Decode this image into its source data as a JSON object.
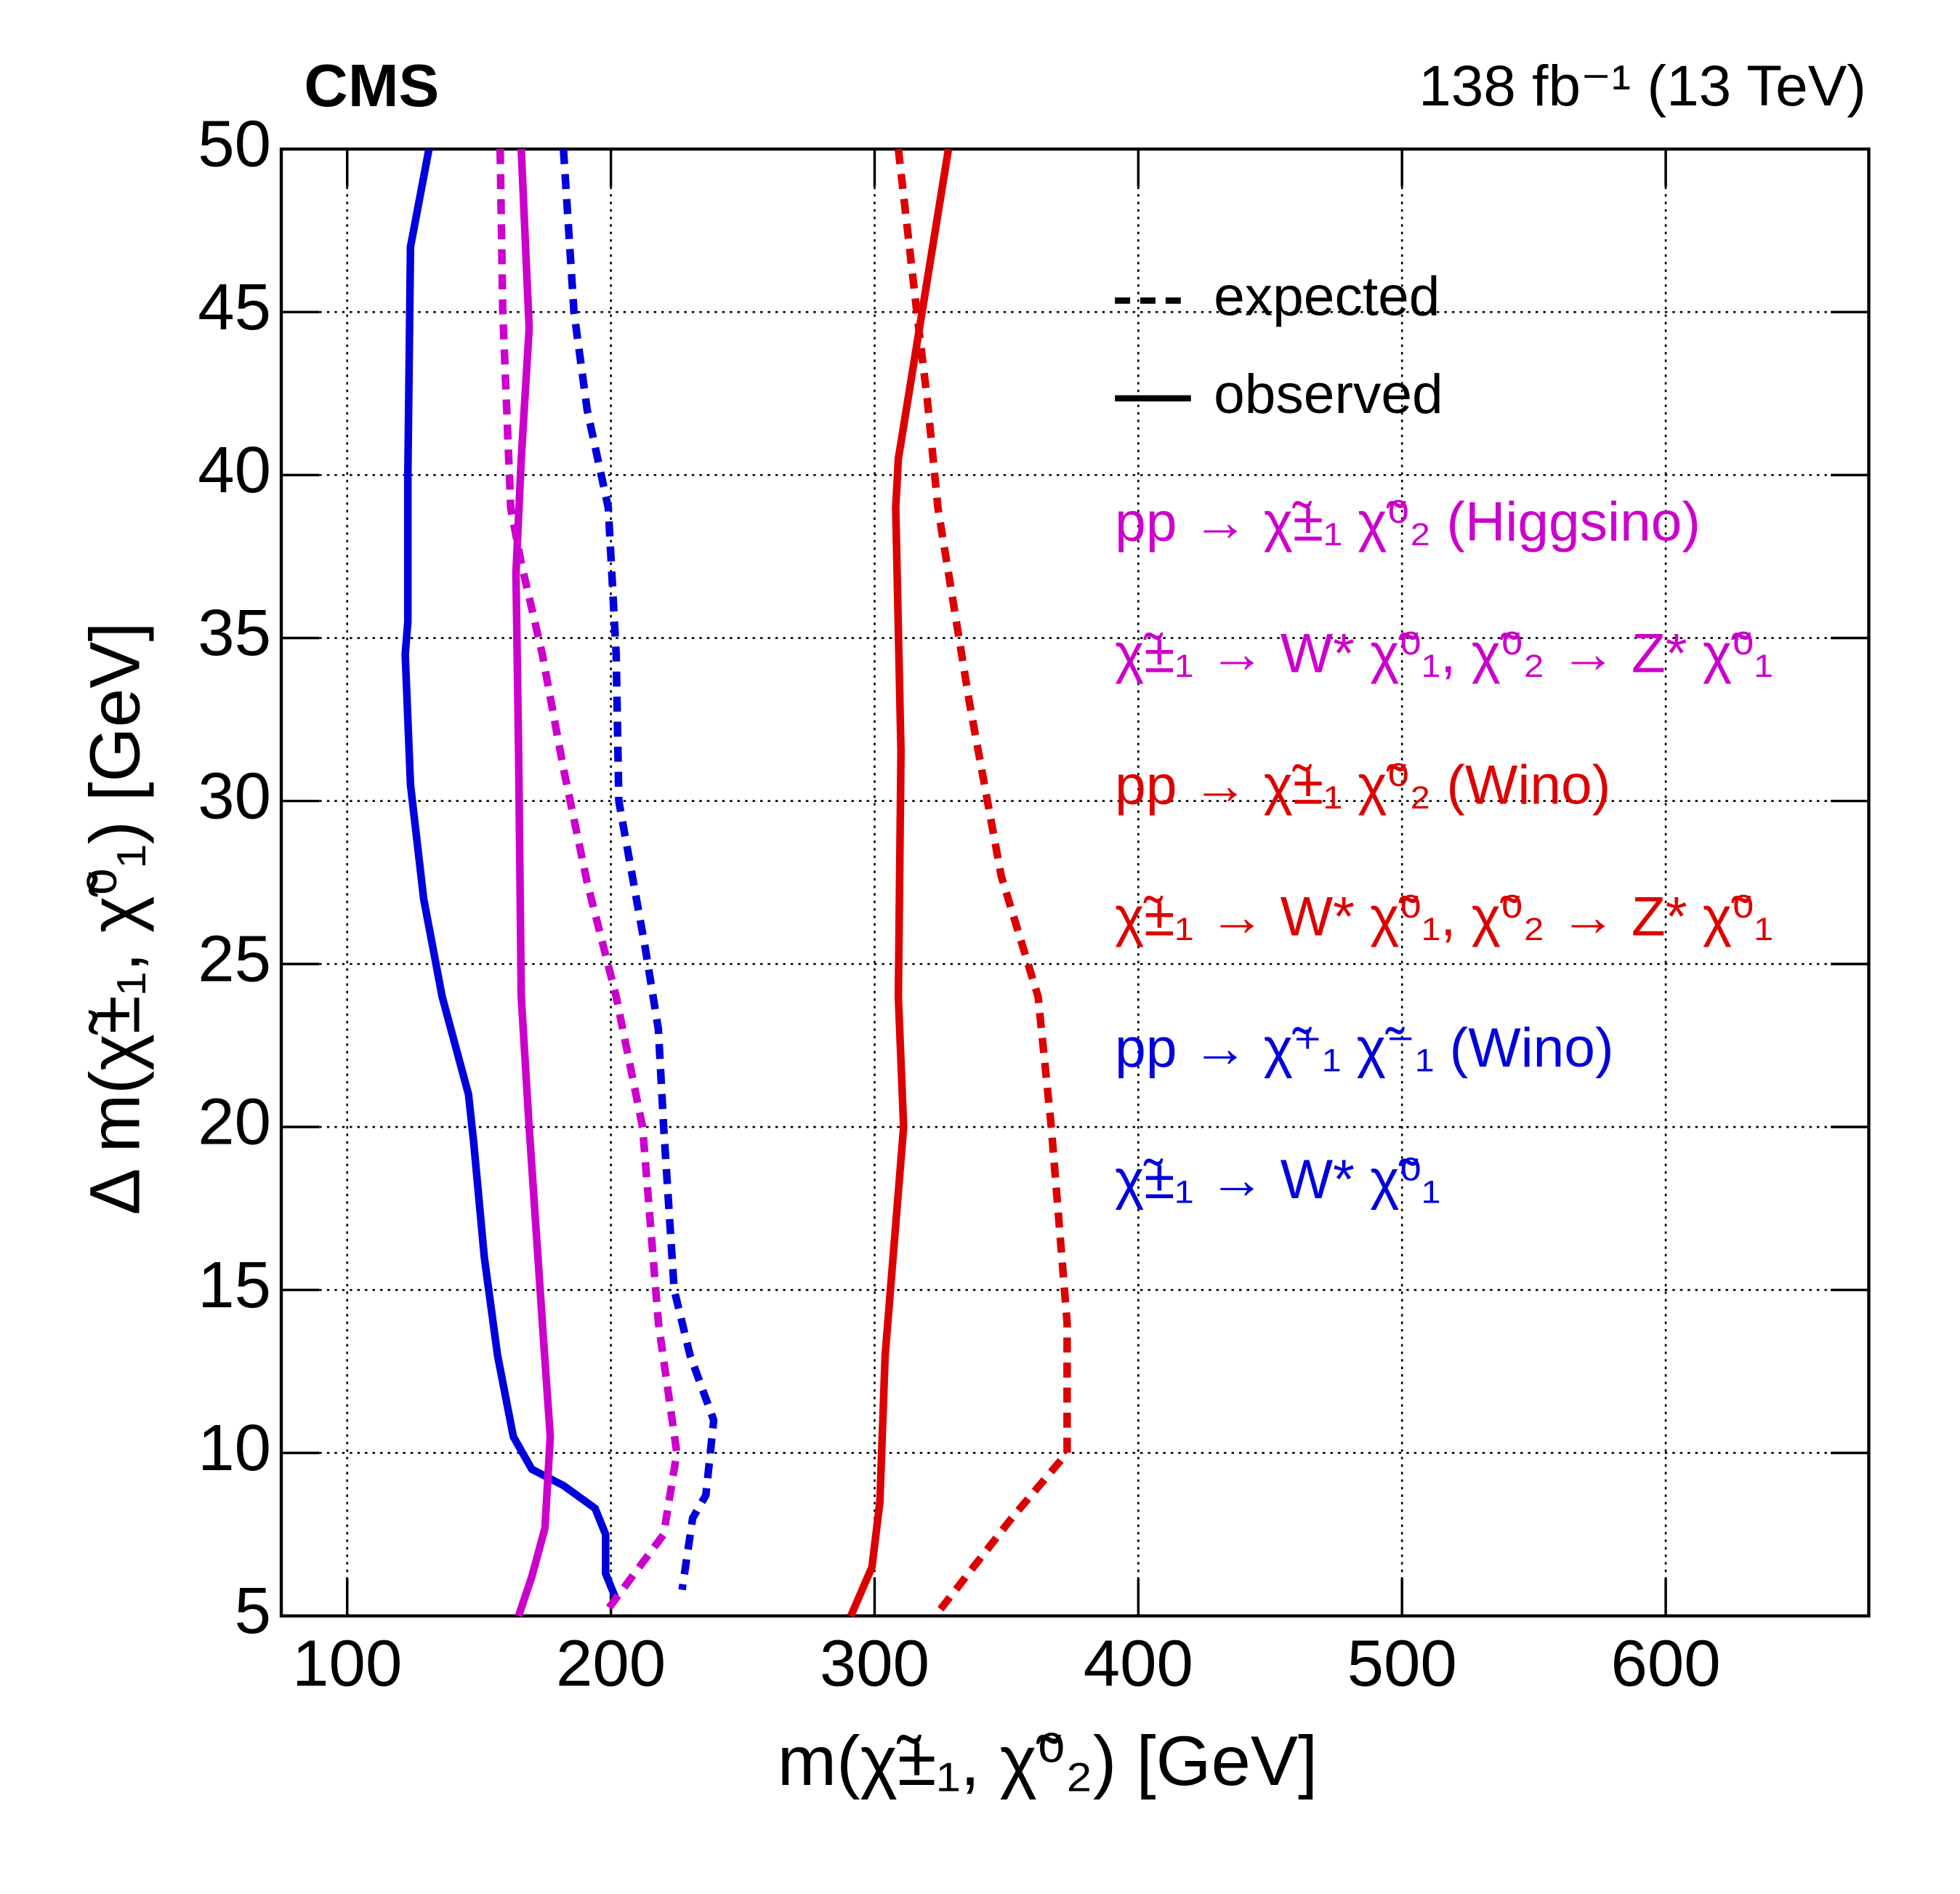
{
  "chart_data": {
    "type": "line",
    "title": "CMS",
    "subtitle": "138 fb⁻¹ (13 TeV)",
    "x_label": "m(χ̃±₁, χ̃⁰₂) [GeV]",
    "y_label": "Δ m(χ̃±₁, χ̃⁰₁) [GeV]",
    "xlim": [
      75,
      677
    ],
    "ylim": [
      5,
      50
    ],
    "xticks": [
      100,
      200,
      300,
      400,
      500,
      600
    ],
    "yticks": [
      5,
      10,
      15,
      20,
      25,
      30,
      35,
      40,
      45,
      50
    ],
    "grid": true,
    "legend": [
      {
        "label": "expected",
        "style": "dashed"
      },
      {
        "label": "observed",
        "style": "solid"
      }
    ],
    "annotations": [
      {
        "text": "pp → χ̃±₁ χ̃⁰₂ (Higgsino)",
        "color": "#cc00cc"
      },
      {
        "text": "χ̃±₁ → W* χ̃⁰₁, χ̃⁰₂ → Z* χ̃⁰₁",
        "color": "#cc00cc"
      },
      {
        "text": "pp → χ̃±₁ χ̃⁰₂ (Wino)",
        "color": "#dd0000"
      },
      {
        "text": "χ̃±₁ → W* χ̃⁰₁, χ̃⁰₂ → Z* χ̃⁰₁",
        "color": "#dd0000"
      },
      {
        "text": "pp → χ̃⁺₁ χ̃⁻₁ (Wino)",
        "color": "#0000dd"
      },
      {
        "text": "χ̃±₁ → W* χ̃⁰₁",
        "color": "#0000dd"
      }
    ],
    "series": [
      {
        "color": "#0000dd",
        "style": "solid",
        "x": [
          131,
          124,
          123,
          123,
          122,
          124,
          129,
          136,
          146,
          148,
          152,
          157,
          163,
          170,
          182,
          194,
          198,
          198,
          202
        ],
        "values": [
          50,
          47,
          40,
          35.5,
          34.5,
          30.5,
          27,
          24,
          21,
          19.5,
          16,
          13,
          10.5,
          9.5,
          9,
          8.3,
          7.5,
          6.3,
          5.5
        ]
      },
      {
        "color": "#0000dd",
        "style": "dashed",
        "x": [
          182,
          186,
          191,
          199,
          202,
          203,
          213,
          218,
          220,
          224,
          230,
          239,
          236,
          231,
          227
        ],
        "values": [
          50,
          45,
          42,
          39,
          34.5,
          30,
          25.5,
          23,
          20,
          15,
          13,
          11,
          8.7,
          8,
          5.8
        ]
      },
      {
        "color": "#cc00cc",
        "style": "solid",
        "x": [
          166,
          169,
          166,
          164,
          165,
          166,
          169,
          174,
          177,
          175,
          170,
          165
        ],
        "values": [
          50,
          44.5,
          40.5,
          37,
          31.5,
          24,
          20,
          14,
          10.5,
          7.7,
          6.2,
          5
        ]
      },
      {
        "color": "#cc00cc",
        "style": "dashed",
        "x": [
          158,
          159,
          162,
          166,
          174,
          182,
          191,
          202,
          212,
          218,
          225,
          220,
          208,
          197
        ],
        "values": [
          50,
          45,
          39,
          37.3,
          34.5,
          31,
          27.5,
          24,
          20,
          14,
          10,
          7.5,
          6.2,
          5
        ]
      },
      {
        "color": "#dd0000",
        "style": "solid",
        "x": [
          328,
          319,
          309,
          308,
          310,
          309,
          311,
          304,
          302,
          299,
          291
        ],
        "values": [
          50,
          45.5,
          40.5,
          39,
          31.5,
          24,
          20,
          13,
          8.5,
          6.5,
          5
        ]
      },
      {
        "color": "#dd0000",
        "style": "dashed",
        "x": [
          309,
          316,
          320,
          324,
          336,
          348,
          362,
          367,
          373,
          373,
          352,
          323
        ],
        "values": [
          50,
          45,
          42.3,
          39,
          33,
          27.7,
          24,
          20,
          14,
          10,
          8,
          5
        ]
      }
    ]
  }
}
